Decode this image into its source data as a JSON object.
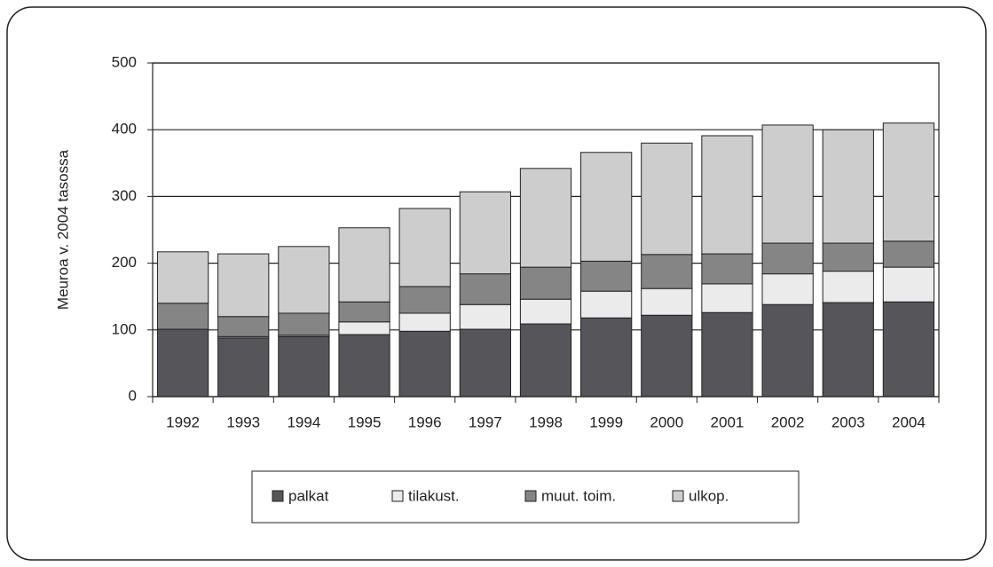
{
  "chart_data": {
    "type": "stacked_bar",
    "y_label": "Meuroa v. 2004 tasossa",
    "categories": [
      "1992",
      "1993",
      "1994",
      "1995",
      "1996",
      "1997",
      "1998",
      "1999",
      "2000",
      "2001",
      "2002",
      "2003",
      "2004"
    ],
    "series": [
      {
        "name": "palkat",
        "color": "#55555a",
        "values": [
          101,
          88,
          90,
          93,
          98,
          101,
          109,
          118,
          122,
          126,
          138,
          141,
          142
        ]
      },
      {
        "name": "tilakust.",
        "color": "#ebebeb",
        "values": [
          0,
          2,
          2,
          19,
          27,
          37,
          37,
          40,
          40,
          43,
          46,
          47,
          52
        ]
      },
      {
        "name": "muut. toim.",
        "color": "#858585",
        "values": [
          39,
          30,
          33,
          30,
          40,
          46,
          48,
          45,
          51,
          45,
          46,
          42,
          39
        ]
      },
      {
        "name": "ulkop.",
        "color": "#cdcdcd",
        "values": [
          77,
          94,
          100,
          111,
          117,
          123,
          148,
          163,
          167,
          177,
          177,
          170,
          177
        ]
      }
    ],
    "ylim": [
      0,
      500
    ],
    "yticks": [
      0,
      100,
      200,
      300,
      400,
      500
    ],
    "grid": true
  }
}
